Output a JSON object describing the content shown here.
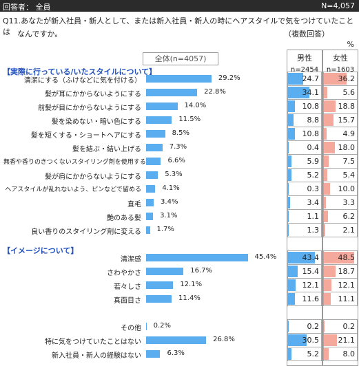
{
  "header": {
    "respondent": "回答者： 全員",
    "n_total": "N=4,057"
  },
  "question": {
    "line1": "Q11.あなたが新入社員・新人として、または新入社員・新人の時にヘアスタイルで気をつけていたことは",
    "line2": "なんですか。",
    "note": "（複数回答）"
  },
  "unit": "%",
  "total_label": "全体(n=4057)",
  "columns": {
    "male": {
      "label": "男性",
      "n": "n=2454",
      "color": "#5aaef0"
    },
    "female": {
      "label": "女性",
      "n": "n=1603",
      "color": "#f4a99c"
    }
  },
  "sections": {
    "practice": "【実際に行っている/いたスタイルについて】",
    "image": "【イメージについて】"
  },
  "chart_data": {
    "type": "bar",
    "orientation": "horizontal",
    "series": [
      {
        "name": "全体(n=4057)",
        "unit": "%"
      },
      {
        "name": "男性 n=2454",
        "unit": "%"
      },
      {
        "name": "女性 n=1603",
        "unit": "%"
      }
    ],
    "rows": [
      {
        "label": "清潔にする（ふけなどに気を付ける）",
        "total": 29.2,
        "total_text": "29.2%",
        "male": 24.7,
        "female": 36.2
      },
      {
        "label": "髪が耳にかからないようにする",
        "total": 22.8,
        "total_text": "22.8%",
        "male": 34.1,
        "female": 5.6
      },
      {
        "label": "前髪が目にかからないようにする",
        "total": 14.0,
        "total_text": "14.0%",
        "male": 10.8,
        "female": 18.8
      },
      {
        "label": "髪を染めない・暗い色にする",
        "total": 11.5,
        "total_text": "11.5%",
        "male": 8.8,
        "female": 15.7
      },
      {
        "label": "髪を短くする・ショートヘアにする",
        "total": 8.5,
        "total_text": "8.5%",
        "male": 10.8,
        "female": 4.9
      },
      {
        "label": "髪を結ぶ・結い上げる",
        "total": 7.3,
        "total_text": "7.3%",
        "male": 0.4,
        "female": 18.0
      },
      {
        "label": "無香や香りのきつくないスタイリング剤を使用する",
        "total": 6.6,
        "total_text": "6.6%",
        "male": 5.9,
        "female": 7.5
      },
      {
        "label": "髪が肩にかからないようにする",
        "total": 5.3,
        "total_text": "5.3%",
        "male": 5.2,
        "female": 5.4
      },
      {
        "label": "ヘアスタイルが乱れないよう、ピンなどで留める",
        "total": 4.1,
        "total_text": "4.1%",
        "male": 0.3,
        "female": 10.0
      },
      {
        "label": "直毛",
        "total": 3.4,
        "total_text": "3.4%",
        "male": 3.4,
        "female": 3.3
      },
      {
        "label": "艶のある髪",
        "total": 3.1,
        "total_text": "3.1%",
        "male": 1.1,
        "female": 6.2
      },
      {
        "label": "良い香りのスタイリング剤に変える",
        "total": 1.7,
        "total_text": "1.7%",
        "male": 1.3,
        "female": 2.1
      },
      {
        "label": "清潔感",
        "total": 45.4,
        "total_text": "45.4%",
        "male": 43.4,
        "female": 48.5
      },
      {
        "label": "さわやかさ",
        "total": 16.7,
        "total_text": "16.7%",
        "male": 15.4,
        "female": 18.7
      },
      {
        "label": "若々しさ",
        "total": 12.1,
        "total_text": "12.1%",
        "male": 12.1,
        "female": 12.1
      },
      {
        "label": "真面目さ",
        "total": 11.4,
        "total_text": "11.4%",
        "male": 11.6,
        "female": 11.1
      },
      {
        "label": "その他",
        "total": 0.2,
        "total_text": "0.2%",
        "male": 0.2,
        "female": 0.2
      },
      {
        "label": "特に気をつけていたことはない",
        "total": 26.8,
        "total_text": "26.8%",
        "male": 30.5,
        "female": 21.1
      },
      {
        "label": "新入社員・新人の経験はない",
        "total": 6.3,
        "total_text": "6.3%",
        "male": 5.2,
        "female": 8.0
      }
    ],
    "male_text": [
      "24.7",
      "34.1",
      "10.8",
      "8.8",
      "10.8",
      "0.4",
      "5.9",
      "5.2",
      "0.3",
      "3.4",
      "1.1",
      "1.3",
      "43.4",
      "15.4",
      "12.1",
      "11.6",
      "0.2",
      "30.5",
      "5.2"
    ],
    "female_text": [
      "36.2",
      "5.6",
      "18.8",
      "15.7",
      "4.9",
      "18.0",
      "7.5",
      "5.4",
      "10.0",
      "3.3",
      "6.2",
      "2.1",
      "48.5",
      "18.7",
      "12.1",
      "11.1",
      "0.2",
      "21.1",
      "8.0"
    ],
    "bar_color": "#5aaef0"
  }
}
